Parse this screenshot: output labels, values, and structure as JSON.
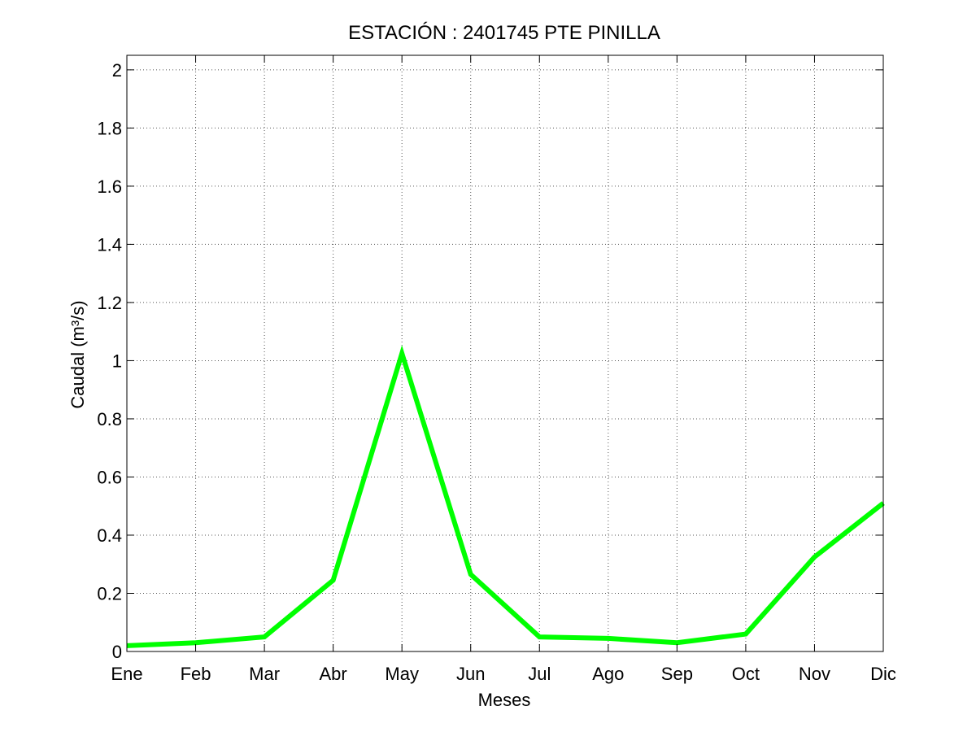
{
  "chart_data": {
    "type": "line",
    "title": "ESTACIÓN :  2401745  PTE PINILLA",
    "xlabel": "Meses",
    "ylabel": "Caudal (m³/s)",
    "categories": [
      "Ene",
      "Feb",
      "Mar",
      "Abr",
      "May",
      "Jun",
      "Jul",
      "Ago",
      "Sep",
      "Oct",
      "Nov",
      "Dic"
    ],
    "series": [
      {
        "values": [
          0.02,
          0.03,
          0.05,
          0.245,
          1.025,
          0.265,
          0.05,
          0.045,
          0.03,
          0.06,
          0.325,
          0.51
        ],
        "color": "#00ff00"
      }
    ],
    "ylim": [
      0,
      2.05
    ],
    "yticks": [
      0,
      0.2,
      0.4,
      0.6,
      0.8,
      1,
      1.2,
      1.4,
      1.6,
      1.8,
      2
    ],
    "ytick_labels": [
      "0",
      "0.2",
      "0.4",
      "0.6",
      "0.8",
      "1",
      "1.2",
      "1.4",
      "1.6",
      "1.8",
      "2"
    ],
    "grid": true
  }
}
